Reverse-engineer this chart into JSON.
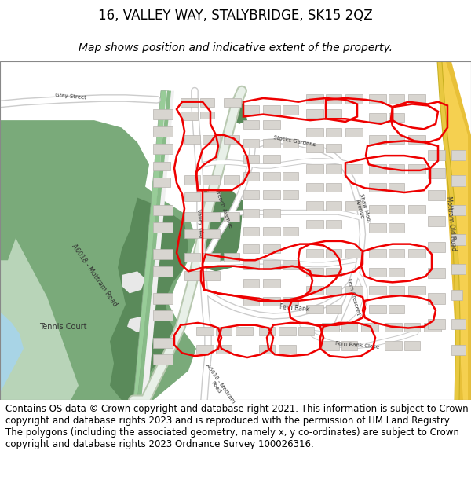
{
  "title": "16, VALLEY WAY, STALYBRIDGE, SK15 2QZ",
  "subtitle": "Map shows position and indicative extent of the property.",
  "footer_text": "Contains OS data © Crown copyright and database right 2021. This information is subject to Crown copyright and database rights 2023 and is reproduced with the permission of HM Land Registry. The polygons (including the associated geometry, namely x, y co-ordinates) are subject to Crown copyright and database rights 2023 Ordnance Survey 100026316.",
  "title_fontsize": 12,
  "subtitle_fontsize": 10,
  "footer_fontsize": 8.5,
  "fig_width": 6.0,
  "fig_height": 6.25,
  "dpi": 100,
  "map_bg": "#f0eeea",
  "road_white": "#ffffff",
  "road_gray": "#d0cdc8",
  "green_dark": "#5a8a5a",
  "green_mid": "#7aaa7a",
  "green_light": "#c8dcc8",
  "green_path": "#98c898",
  "blue_river": "#a8d4e6",
  "yellow_road": "#e8c840",
  "building_fill": "#d8d5d0",
  "building_edge": "#b8b5b0",
  "red_boundary": "#ee0000",
  "text_dark": "#333333"
}
